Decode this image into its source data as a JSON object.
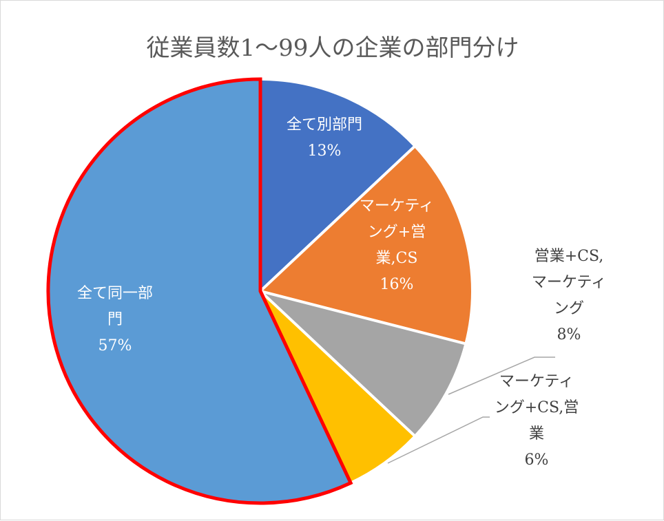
{
  "chart_data": {
    "type": "pie",
    "title": "従業員数1～99人の企業の部門分け",
    "categories": [
      "全て別部門",
      "マーケティング+営業,CS",
      "営業+CS,マーケティング",
      "マーケティング+CS,営業",
      "全て同一部門"
    ],
    "values": [
      13,
      16,
      8,
      6,
      57
    ],
    "unit": "%",
    "colors": [
      "#4472c4",
      "#ed7d31",
      "#a5a5a5",
      "#ffc000",
      "#5b9bd5"
    ],
    "highlight": {
      "category": "全て同一部門",
      "outline_color": "#ff0000"
    },
    "data_labels": [
      {
        "lines": [
          "全て別部門"
        ],
        "value": "13%"
      },
      {
        "lines": [
          "マーケティ",
          "ング+営",
          "業,CS"
        ],
        "value": "16%"
      },
      {
        "lines": [
          "営業+CS,",
          "マーケティ",
          "ング"
        ],
        "value": "8%"
      },
      {
        "lines": [
          "マーケティ",
          "ング+CS,営",
          "業"
        ],
        "value": "6%"
      },
      {
        "lines": [
          "全て同一部",
          "門"
        ],
        "value": "57%"
      }
    ],
    "legend": "none"
  }
}
